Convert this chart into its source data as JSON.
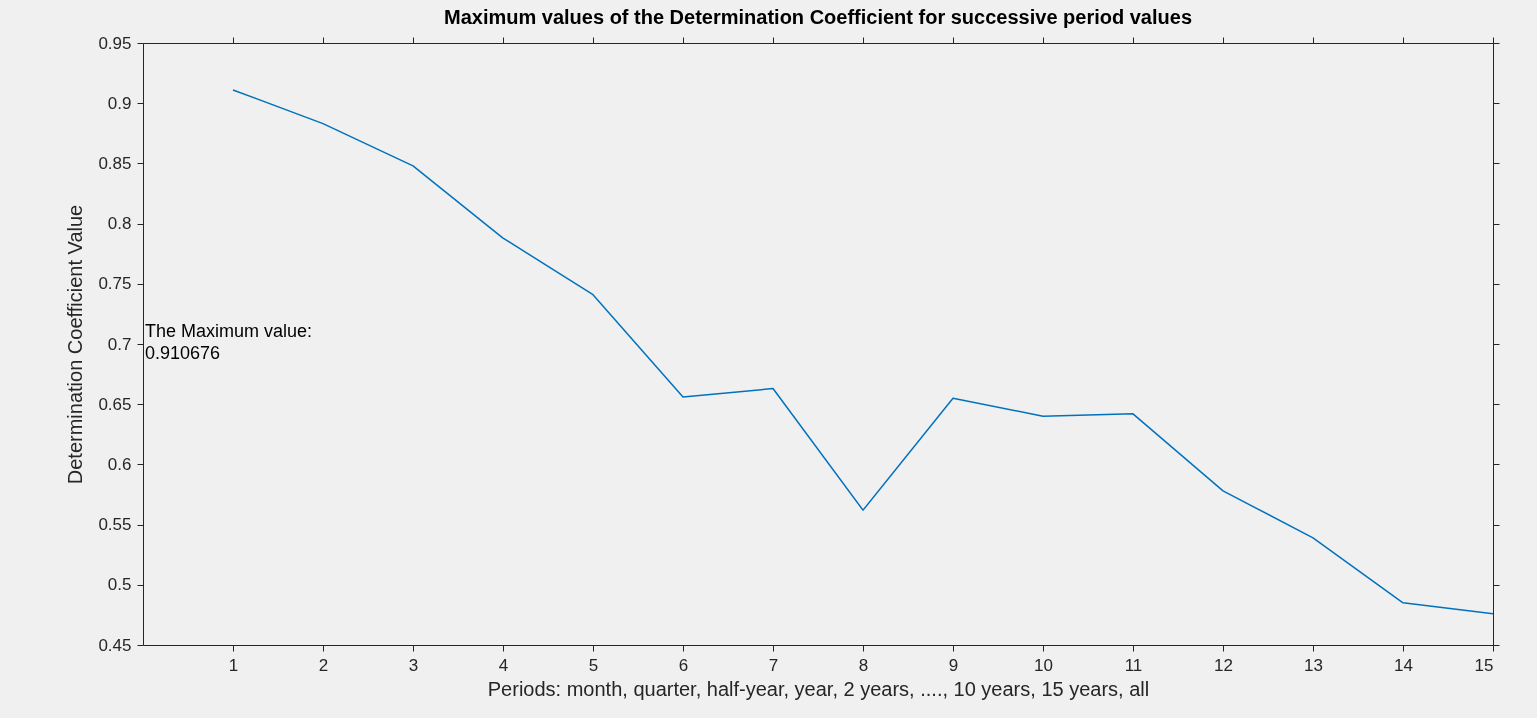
{
  "chart_data": {
    "type": "line",
    "title": "Maximum values of the Determination Coefficient for successive period values",
    "xlabel": "Periods: month, quarter, half-year, year, 2 years, ...., 10 years, 15 years, all",
    "ylabel": "Determination Coefficient Value",
    "x": [
      1,
      2,
      3,
      4,
      5,
      6,
      7,
      8,
      9,
      10,
      11,
      12,
      13,
      14,
      15
    ],
    "series": [
      {
        "color": "#0072bd",
        "values": [
          0.911,
          0.883,
          0.848,
          0.788,
          0.741,
          0.656,
          0.663,
          0.562,
          0.655,
          0.64,
          0.642,
          0.578,
          0.539,
          0.485,
          0.476
        ]
      }
    ],
    "xlim": [
      0,
      15
    ],
    "xticks": [
      1,
      2,
      3,
      4,
      5,
      6,
      7,
      8,
      9,
      10,
      11,
      12,
      13,
      14,
      15
    ],
    "ylim": [
      0.45,
      0.95
    ],
    "yticks": [
      0.45,
      0.5,
      0.55,
      0.6,
      0.65,
      0.7,
      0.75,
      0.8,
      0.85,
      0.9,
      0.95
    ],
    "annotations": [
      "The Maximum value:\n0.910676"
    ],
    "grid": false,
    "marker": "none",
    "line_style": "solid"
  }
}
